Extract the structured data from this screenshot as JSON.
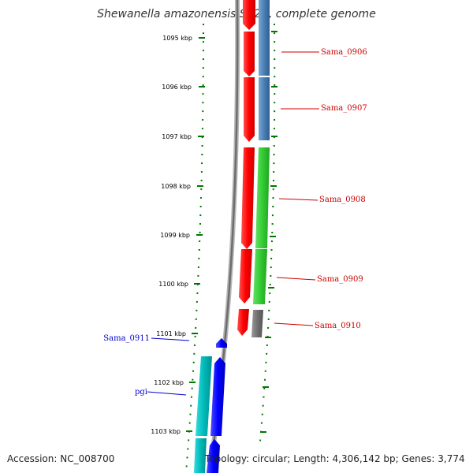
{
  "title": "Shewanella amazonensis SB2B, complete genome",
  "footer": {
    "accession": "Accession: NC_008700",
    "topology": "Topology: circular; Length: 4,306,142 bp; Genes: 3,774"
  },
  "ruler": {
    "ticks": [
      "1095 kbp",
      "1096 kbp",
      "1097 kbp",
      "1098 kbp",
      "1099 kbp",
      "1100 kbp",
      "1101 kbp",
      "1102 kbp",
      "1103 kbp"
    ]
  },
  "colors": {
    "cds": "#ff0000",
    "gene_steelblue": "#4a7fb5",
    "gene_green": "#33cc33",
    "gene_grey": "#707070",
    "gene_blue": "#0000ff",
    "gene_cyan": "#00bbbb",
    "label_red": "#cc0000",
    "label_blue": "#0000cc",
    "backbone": "#808080",
    "tick_green": "#007700"
  },
  "genes": [
    {
      "label": "Sama_0906",
      "strand": "forward"
    },
    {
      "label": "Sama_0907",
      "strand": "forward"
    },
    {
      "label": "Sama_0908",
      "strand": "forward"
    },
    {
      "label": "Sama_0909",
      "strand": "forward"
    },
    {
      "label": "Sama_0910",
      "strand": "forward"
    },
    {
      "label": "Sama_0911",
      "strand": "reverse"
    },
    {
      "label": "pgi",
      "strand": "reverse"
    }
  ]
}
